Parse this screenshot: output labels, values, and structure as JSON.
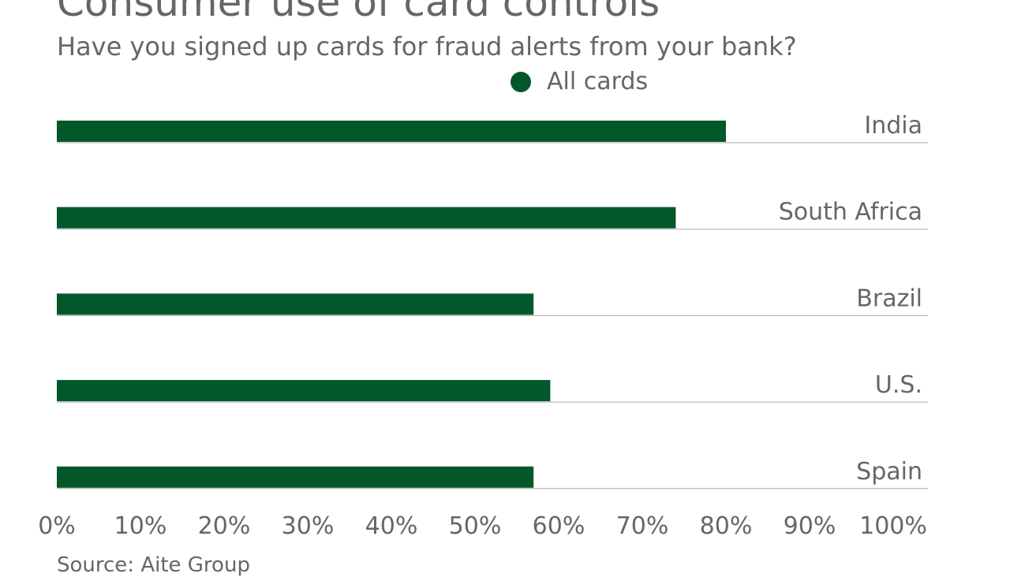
{
  "chart_data": {
    "type": "bar",
    "orientation": "horizontal",
    "title": "Consumer use of card controls",
    "subtitle": "Have you signed up cards for fraud alerts from your bank?",
    "categories": [
      "India",
      "South Africa",
      "Brazil",
      "U.S.",
      "Spain"
    ],
    "series": [
      {
        "name": "All cards",
        "values": [
          80,
          74,
          57,
          59,
          57
        ],
        "color": "#03582a"
      }
    ],
    "xlim": [
      0,
      100
    ],
    "xticks": [
      "0%",
      "10%",
      "20%",
      "30%",
      "40%",
      "50%",
      "60%",
      "70%",
      "80%",
      "90%",
      "100%"
    ],
    "legend_placement": "top",
    "source": "Source: Aite Group"
  }
}
